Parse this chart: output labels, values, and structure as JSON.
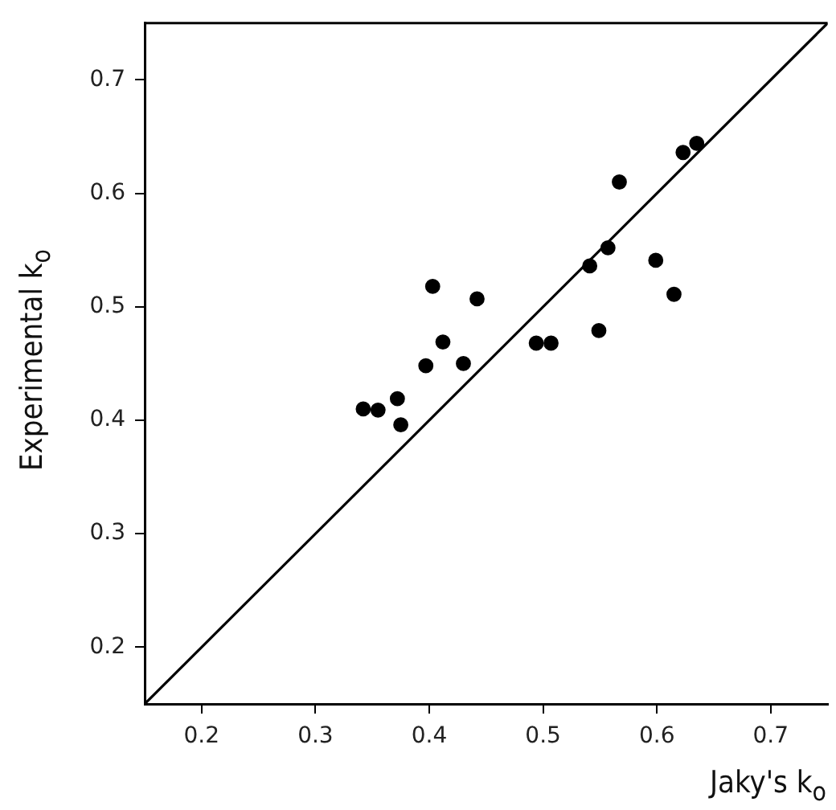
{
  "chart_data": {
    "type": "scatter",
    "xlabel": "Jaky's k$_{o}$",
    "ylabel": "Experimental k$_{o}$",
    "xlim": [
      0.15,
      0.75
    ],
    "xticks": [
      0.2,
      0.3,
      0.4,
      0.5,
      0.6,
      0.7
    ],
    "ylim": [
      0.15,
      0.75
    ],
    "yticks": [
      0.2,
      0.3,
      0.4,
      0.5,
      0.6,
      0.7
    ],
    "grid": false,
    "legend": false,
    "series": [
      {
        "color": "#000000",
        "marker": "circle",
        "x": [
          0.342,
          0.355,
          0.372,
          0.375,
          0.397,
          0.403,
          0.412,
          0.43,
          0.442,
          0.494,
          0.507,
          0.541,
          0.549,
          0.557,
          0.567,
          0.599,
          0.615,
          0.623,
          0.635
        ],
        "values": [
          0.41,
          0.409,
          0.419,
          0.396,
          0.448,
          0.518,
          0.469,
          0.45,
          0.507,
          0.468,
          0.468,
          0.536,
          0.479,
          0.552,
          0.61,
          0.541,
          0.511,
          0.636,
          0.644
        ]
      },
      {
        "type": "line",
        "color": "#000000",
        "x": [
          0.15,
          0.75
        ],
        "values": [
          0.15,
          0.75
        ]
      }
    ]
  }
}
